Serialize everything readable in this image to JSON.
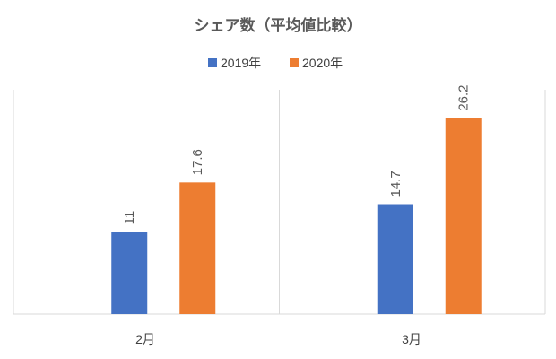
{
  "chart_data": {
    "type": "bar",
    "title": "シェア数（平均値比較）",
    "categories": [
      "2月",
      "3月"
    ],
    "series": [
      {
        "name": "2019年",
        "color": "#4472C4",
        "values": [
          11,
          14.7
        ]
      },
      {
        "name": "2020年",
        "color": "#ED7D31",
        "values": [
          17.6,
          26.2
        ]
      }
    ],
    "ylim": [
      0,
      30
    ],
    "data_labels": true,
    "legend_position": "top",
    "grid": false
  }
}
